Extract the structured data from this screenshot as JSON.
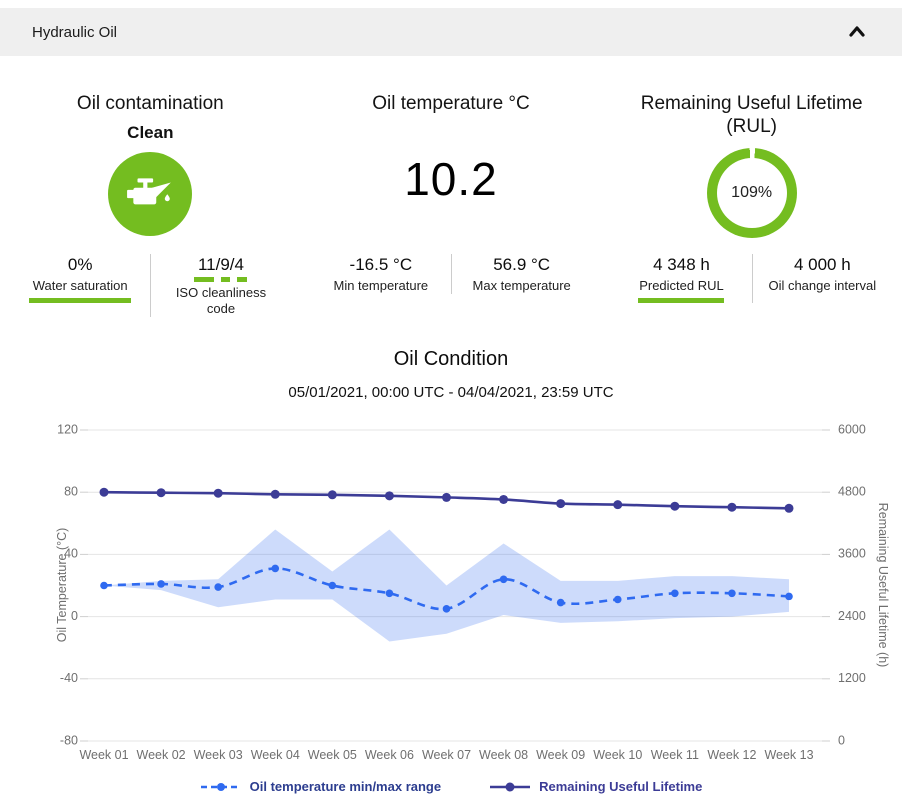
{
  "header": {
    "title": "Hydraulic Oil"
  },
  "colors": {
    "green": "#74bd20",
    "navy": "#3c3c96",
    "blue": "#2f6af0",
    "band": "rgba(47,106,240,0.24)",
    "grid": "#e4e4e4",
    "axis_text": "#6f6f6f",
    "header_bg": "#efefef"
  },
  "kpis": {
    "contamination": {
      "title": "Oil contamination",
      "status": "Clean",
      "icon": "oil-can-icon",
      "stats": [
        {
          "value": "0%",
          "label": "Water saturation"
        },
        {
          "value": "11/9/4",
          "label": "ISO cleanliness code"
        }
      ]
    },
    "temperature": {
      "title": "Oil temperature °C",
      "value": "10.2",
      "stats": [
        {
          "value": "-16.5 °C",
          "label": "Min temperature"
        },
        {
          "value": "56.9 °C",
          "label": "Max temperature"
        }
      ]
    },
    "rul": {
      "title": "Remaining Useful Lifetime (RUL)",
      "percent": "109%",
      "stats": [
        {
          "value": "4 348 h",
          "label": "Predicted RUL"
        },
        {
          "value": "4 000 h",
          "label": "Oil change interval"
        }
      ]
    }
  },
  "chart_data": {
    "type": "line",
    "title": "Oil Condition",
    "subtitle": "05/01/2021, 00:00 UTC - 04/04/2021, 23:59 UTC",
    "categories": [
      "Week 01",
      "Week 02",
      "Week 03",
      "Week 04",
      "Week 05",
      "Week 06",
      "Week 07",
      "Week 08",
      "Week 09",
      "Week 10",
      "Week 11",
      "Week 12",
      "Week 13"
    ],
    "left_axis": {
      "title": "Oil Temperature (°C)",
      "ticks": [
        120,
        80,
        40,
        0,
        -40,
        -80
      ],
      "min": -80,
      "max": 120,
      "grid": true
    },
    "right_axis": {
      "title": "Remaining Useful Lifetime (h)",
      "ticks": [
        6000,
        4800,
        3600,
        2400,
        1200,
        0
      ],
      "min": 0,
      "max": 6000
    },
    "legend_position": "bottom",
    "series": [
      {
        "name": "Oil temperature min/max range",
        "axis": "left",
        "style": "dashed",
        "color": "#2f6af0",
        "band_color": "rgba(47,106,240,0.24)",
        "avg": [
          20,
          21,
          19,
          31,
          20,
          15,
          5,
          24,
          9,
          11,
          15,
          15,
          13
        ],
        "min": [
          20,
          17,
          6,
          11,
          11,
          -16,
          -11,
          1,
          -4,
          -3,
          -1,
          0,
          3
        ],
        "max": [
          20,
          23,
          24,
          56,
          29,
          56,
          20,
          47,
          23,
          23,
          26,
          26,
          24
        ]
      },
      {
        "name": "Remaining Useful Lifetime",
        "axis": "right",
        "style": "solid",
        "color": "#3c3c96",
        "values": [
          4800,
          4790,
          4780,
          4760,
          4750,
          4730,
          4700,
          4660,
          4580,
          4560,
          4530,
          4510,
          4490
        ]
      }
    ]
  }
}
